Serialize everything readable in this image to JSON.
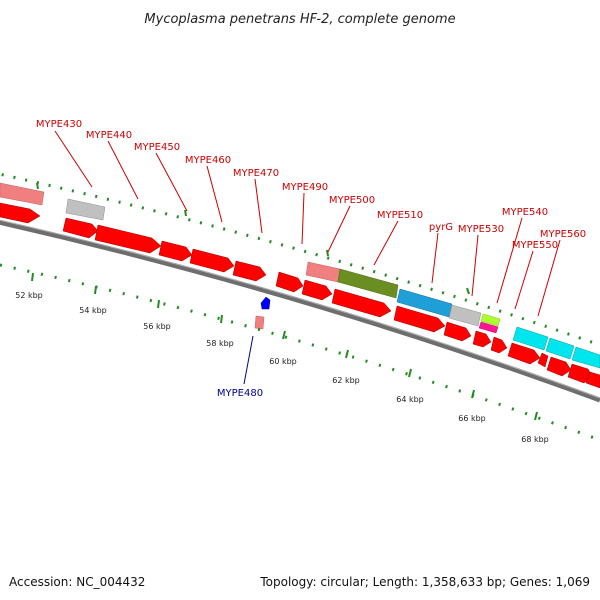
{
  "title": "Mycoplasma penetrans HF-2, complete genome",
  "footer": {
    "accession": "Accession: NC_004432",
    "summary": "Topology: circular; Length: 1,358,633 bp; Genes: 1,069"
  },
  "colors": {
    "forward_label": "#cc0000",
    "reverse_label": "#00008b",
    "backbone": "#808080",
    "tick": "#228b22"
  },
  "kbp_labels": [
    "52 kbp",
    "54 kbp",
    "56 kbp",
    "58 kbp",
    "60 kbp",
    "62 kbp",
    "64 kbp",
    "66 kbp",
    "68 kbp"
  ],
  "gene_labels": [
    {
      "name": "MYPE430",
      "strand": "forward"
    },
    {
      "name": "MYPE440",
      "strand": "forward"
    },
    {
      "name": "MYPE450",
      "strand": "forward"
    },
    {
      "name": "MYPE460",
      "strand": "forward"
    },
    {
      "name": "MYPE470",
      "strand": "forward"
    },
    {
      "name": "MYPE490",
      "strand": "forward"
    },
    {
      "name": "MYPE500",
      "strand": "forward"
    },
    {
      "name": "MYPE510",
      "strand": "forward"
    },
    {
      "name": "pyrG",
      "strand": "forward"
    },
    {
      "name": "MYPE530",
      "strand": "forward"
    },
    {
      "name": "MYPE540",
      "strand": "forward"
    },
    {
      "name": "MYPE550",
      "strand": "forward"
    },
    {
      "name": "MYPE560",
      "strand": "forward"
    },
    {
      "name": "MYPE480",
      "strand": "reverse"
    }
  ]
}
